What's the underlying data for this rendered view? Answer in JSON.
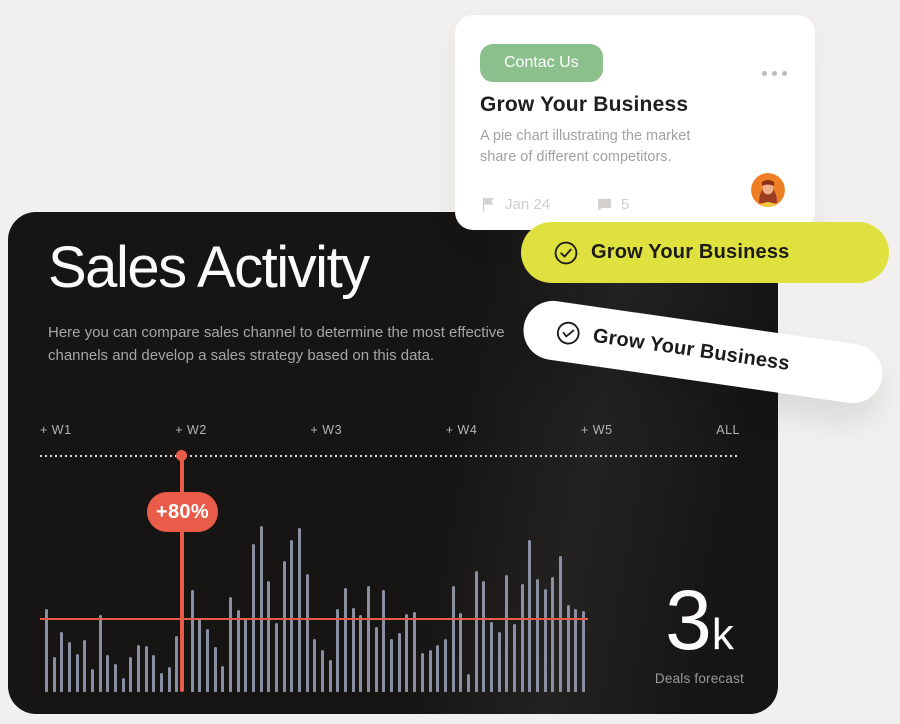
{
  "task_card": {
    "button_label": "Contac Us",
    "menu_icon": "ellipsis-icon",
    "title": "Grow Your Business",
    "description": "A pie chart illustrating the market share of different competitors.",
    "date_icon": "flag-icon",
    "date": "Jan 24",
    "comments_icon": "comment-icon",
    "comments_count": "5",
    "avatar_icon": "user-avatar"
  },
  "pills": {
    "yellow": {
      "icon": "check-circle-icon",
      "label": "Grow Your Business"
    },
    "white": {
      "icon": "check-circle-icon",
      "label": "Grow Your Business"
    }
  },
  "sales_card": {
    "title": "Sales Activity",
    "description": "Here you can compare sales channel to determine the most effective channels and develop a sales strategy based on this data.",
    "tabs": [
      "+ W1",
      "+ W2",
      "+ W3",
      "+ W4",
      "+ W5",
      "ALL"
    ],
    "badge": "+80%",
    "stat_value": "3",
    "stat_unit": "k",
    "stat_label": "Deals forecast"
  },
  "colors": {
    "background": "#f1f0ee",
    "dark_card": "#171513",
    "accent_red": "#e85c49",
    "accent_yellow": "#dfe23e",
    "accent_green": "#8bbf8c",
    "bar_color": "#8a8fa2"
  },
  "chart_data": {
    "type": "bar",
    "title": "Sales Activity",
    "xlabel": "Weeks W1–W5 (timeline with + W1…+ W5, ALL tabs above)",
    "ylabel": "Sales volume (relative, unlabeled axis)",
    "units": "relative pixel heights as drawn, baseline = 0",
    "categories_note": "unlabeled daily bars across weeks W1-W5; null = position of selected-week marker line",
    "values": [
      83,
      35,
      60,
      50,
      38,
      52,
      23,
      77,
      37,
      28,
      14,
      35,
      47,
      46,
      37,
      19,
      25,
      56,
      null,
      102,
      73,
      63,
      45,
      26,
      95,
      82,
      73,
      148,
      166,
      111,
      69,
      131,
      152,
      164,
      118,
      53,
      42,
      32,
      83,
      104,
      84,
      77,
      106,
      65,
      102,
      53,
      59,
      78,
      80,
      39,
      42,
      47,
      53,
      106,
      79,
      18,
      121,
      111,
      70,
      60,
      117,
      68,
      108,
      152,
      113,
      103,
      115,
      136,
      87,
      83,
      81
    ],
    "highlight": {
      "index": 18,
      "type": "vertical-marker-line",
      "label": "+80%",
      "color": "#e85c49",
      "tab": "+ W2"
    },
    "reference_line": {
      "type": "horizontal",
      "value": 73,
      "color": "#e85c49"
    },
    "legend": "none",
    "grid": "off",
    "annotation": {
      "stat": "3k",
      "stat_label": "Deals forecast"
    }
  }
}
